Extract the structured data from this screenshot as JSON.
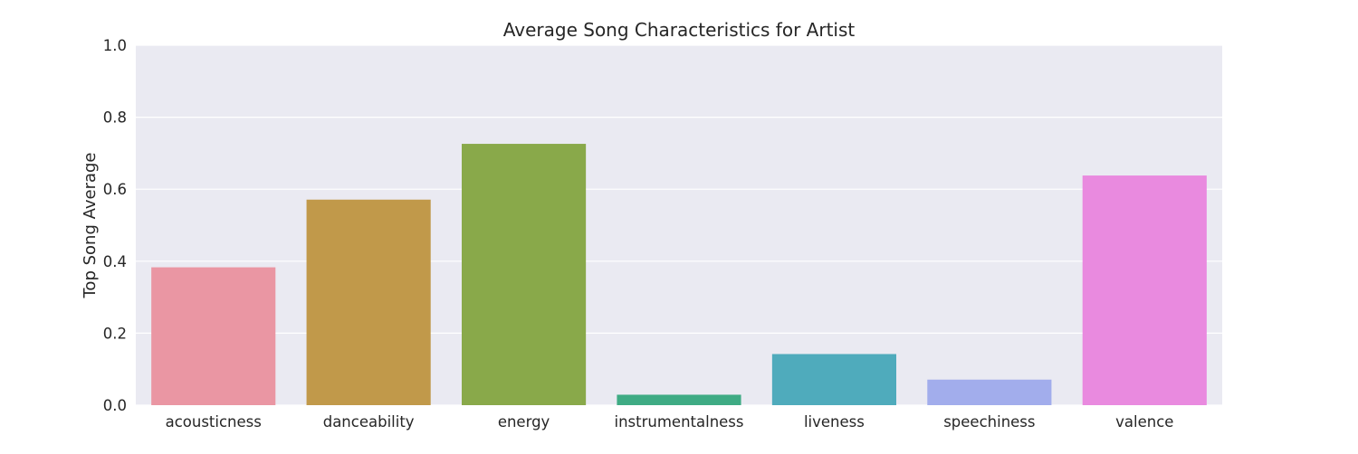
{
  "chart_data": {
    "type": "bar",
    "title": "Average Song Characteristics for Artist",
    "xlabel": "",
    "ylabel": "Top Song Average",
    "categories": [
      "acousticness",
      "danceability",
      "energy",
      "instrumentalness",
      "liveness",
      "speechiness",
      "valence"
    ],
    "values": [
      0.383,
      0.571,
      0.726,
      0.029,
      0.142,
      0.071,
      0.638
    ],
    "colors": [
      "#ea96a3",
      "#c1994a",
      "#89a94a",
      "#3fab84",
      "#4fabbc",
      "#a2adec",
      "#e98adf"
    ],
    "ylim": [
      0,
      1.0
    ],
    "yticks": [
      "0.0",
      "0.2",
      "0.4",
      "0.6",
      "0.8",
      "1.0"
    ],
    "grid": true,
    "background": "#eaeaf2",
    "gridline_color": "#ffffff"
  }
}
